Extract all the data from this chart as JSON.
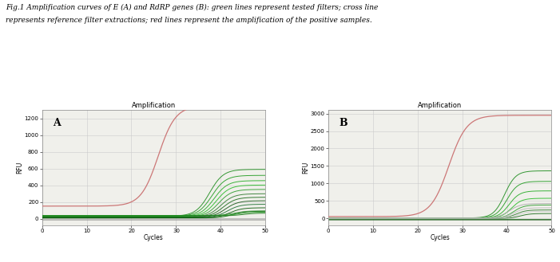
{
  "title_text_line1": "Fig.1 Amplification curves of E (A) and RdRP genes (B): green lines represent tested filters; cross line",
  "title_text_line2": "represents reference filter extractions; red lines represent the amplification of the positive samples.",
  "chart_title": "Amplification",
  "xlabel": "Cycles",
  "ylabel": "RFU",
  "x_max": 50,
  "panel_A": {
    "label": "A",
    "y_min": -80,
    "y_max": 1300,
    "y_ticks": [
      0,
      200,
      400,
      600,
      800,
      1000,
      1200
    ],
    "red_curve": {
      "amplitude": 1200,
      "midpoint": 26,
      "steepness": 0.52,
      "baseline": 150,
      "drop": 80
    },
    "green_curves": [
      {
        "amplitude": 560,
        "midpoint": 37.5,
        "steepness": 0.65,
        "baseline": 30,
        "color": "#1a8a1a"
      },
      {
        "amplitude": 490,
        "midpoint": 38.0,
        "steepness": 0.65,
        "baseline": 28,
        "color": "#1e9a1e"
      },
      {
        "amplitude": 430,
        "midpoint": 38.5,
        "steepness": 0.66,
        "baseline": 25,
        "color": "#22aa22"
      },
      {
        "amplitude": 380,
        "midpoint": 39.0,
        "steepness": 0.67,
        "baseline": 22,
        "color": "#26ba26"
      },
      {
        "amplitude": 330,
        "midpoint": 39.5,
        "steepness": 0.68,
        "baseline": 20,
        "color": "#2a9a2a"
      },
      {
        "amplitude": 280,
        "midpoint": 40.0,
        "steepness": 0.69,
        "baseline": 18,
        "color": "#2e7a2e"
      },
      {
        "amplitude": 240,
        "midpoint": 40.5,
        "steepness": 0.7,
        "baseline": 16,
        "color": "#1a6a1a"
      },
      {
        "amplitude": 200,
        "midpoint": 41.0,
        "steepness": 0.71,
        "baseline": 14,
        "color": "#155515"
      },
      {
        "amplitude": 160,
        "midpoint": 41.5,
        "steepness": 0.72,
        "baseline": 12,
        "color": "#1a7030"
      },
      {
        "amplitude": 120,
        "midpoint": 42.0,
        "steepness": 0.73,
        "baseline": 10,
        "color": "#0a5a0a"
      },
      {
        "amplitude": 80,
        "midpoint": 42.5,
        "steepness": 0.74,
        "baseline": 8,
        "color": "#0a6a0a"
      },
      {
        "amplitude": 55,
        "midpoint": 43.0,
        "steepness": 0.75,
        "baseline": 38,
        "color": "#2a8a2a"
      },
      {
        "amplitude": 42,
        "midpoint": 44.0,
        "steepness": 0.76,
        "baseline": 36,
        "color": "#2a9a2a"
      },
      {
        "amplitude": 32,
        "midpoint": 45.0,
        "steepness": 0.77,
        "baseline": 34,
        "color": "#1a7a1a"
      }
    ],
    "flat_lines": [
      {
        "value": 5,
        "color": "#999999",
        "lw": 0.5
      },
      {
        "value": -5,
        "color": "#aaaaaa",
        "lw": 0.5
      },
      {
        "value": -15,
        "color": "#888888",
        "lw": 0.5
      }
    ]
  },
  "panel_B": {
    "label": "B",
    "y_min": -200,
    "y_max": 3100,
    "y_ticks": [
      0,
      500,
      1000,
      1500,
      2000,
      2500,
      3000
    ],
    "red_curve": {
      "amplitude": 2900,
      "midpoint": 27,
      "steepness": 0.5,
      "baseline": 50,
      "drop": 200
    },
    "green_curves": [
      {
        "amplitude": 1350,
        "midpoint": 39.5,
        "steepness": 0.8,
        "baseline": 10,
        "color": "#1a8a1a"
      },
      {
        "amplitude": 1050,
        "midpoint": 40.0,
        "steepness": 0.82,
        "baseline": 8,
        "color": "#1e9a1e"
      },
      {
        "amplitude": 780,
        "midpoint": 40.5,
        "steepness": 0.84,
        "baseline": 6,
        "color": "#22aa22"
      },
      {
        "amplitude": 570,
        "midpoint": 41.0,
        "steepness": 0.86,
        "baseline": 4,
        "color": "#26ba26"
      },
      {
        "amplitude": 380,
        "midpoint": 41.5,
        "steepness": 0.88,
        "baseline": 2,
        "color": "#2a9a2a"
      },
      {
        "amplitude": 240,
        "midpoint": 42.0,
        "steepness": 0.9,
        "baseline": 0,
        "color": "#2e7a2e"
      },
      {
        "amplitude": 140,
        "midpoint": 43.0,
        "steepness": 0.92,
        "baseline": -2,
        "color": "#1a6a1a"
      },
      {
        "amplitude": 420,
        "midpoint": 40.5,
        "steepness": 0.78,
        "baseline": 3,
        "color": "#aaaaaa"
      },
      {
        "amplitude": 300,
        "midpoint": 41.5,
        "steepness": 0.82,
        "baseline": 2,
        "color": "#bbbbbb"
      },
      {
        "amplitude": 200,
        "midpoint": 42.5,
        "steepness": 0.88,
        "baseline": 1,
        "color": "#cccccc"
      }
    ],
    "flat_lines": [
      {
        "value": -30,
        "color": "#0a4a0a",
        "lw": 0.5
      },
      {
        "value": -50,
        "color": "#155515",
        "lw": 0.5
      },
      {
        "value": -20,
        "color": "#1a6a1a",
        "lw": 0.5
      }
    ]
  },
  "bg_color": "#f0f0eb",
  "grid_color": "#c8c8c8",
  "red_color": "#cc7777",
  "font_size_title": 6.5,
  "font_size_chart_title": 6,
  "font_size_label": 5.5,
  "font_size_tick": 5,
  "font_size_panel": 9
}
